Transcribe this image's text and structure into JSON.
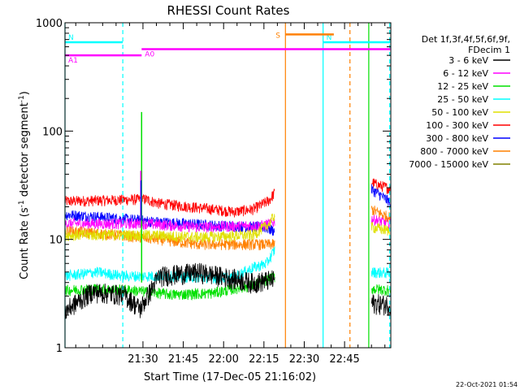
{
  "stamp": "22-Oct-2021 01:54",
  "chart_data": {
    "type": "line",
    "title": "RHESSI Count Rates",
    "xlabel": "Start Time (17-Dec-05 21:16:02)",
    "ylabel_main": "Count Rate (s",
    "ylabel_sup1": "-1",
    "ylabel_mid": " detector segment",
    "ylabel_sup2": "-1",
    "ylabel_end": ")",
    "y_scale": "log",
    "ylim": [
      1,
      1000
    ],
    "xlim_minutes": [
      21.3,
      39.3
    ],
    "x_ticks": [
      {
        "label": "21:30",
        "minutes": 29
      },
      {
        "label": "21:45",
        "minutes": 44
      },
      {
        "label": "22:00",
        "minutes": 59
      },
      {
        "label": "22:15",
        "minutes": 74
      },
      {
        "label": "22:30",
        "minutes": 89
      },
      {
        "label": "22:45",
        "minutes": 104
      }
    ],
    "y_ticks": [
      {
        "label": "1000",
        "value": 1000
      },
      {
        "label": "100",
        "value": 100
      },
      {
        "label": "10",
        "value": 10
      },
      {
        "label": "1",
        "value": 1
      }
    ],
    "legend": {
      "placement": "right",
      "header": [
        "Det 1f,3f,4f,5f,6f,9f,",
        "FDecim 1"
      ],
      "entries": [
        {
          "label": "3 - 6 keV",
          "color": "#000000"
        },
        {
          "label": "6 - 12 keV",
          "color": "#ff00ff"
        },
        {
          "label": "12 - 25 keV",
          "color": "#00e000"
        },
        {
          "label": "25 - 50 keV",
          "color": "#00ffff"
        },
        {
          "label": "50 - 100 keV",
          "color": "#e0e000"
        },
        {
          "label": "100 - 300 keV",
          "color": "#ff0000"
        },
        {
          "label": "300 - 800 keV",
          "color": "#0000ff"
        },
        {
          "label": "800 - 7000 keV",
          "color": "#ff8000"
        },
        {
          "label": "7000 - 15000 keV",
          "color": "#808000"
        }
      ]
    },
    "series": [
      {
        "color": "#ff0000",
        "seg1": [
          [
            0,
            22.5
          ],
          [
            30,
            23.5
          ],
          [
            35,
            21.5
          ],
          [
            55,
            19
          ],
          [
            63,
            18
          ],
          [
            70,
            19
          ],
          [
            74,
            21.5
          ],
          [
            76,
            23
          ],
          [
            77,
            25
          ],
          [
            78,
            27
          ]
        ],
        "seg2": [
          [
            114,
            34
          ],
          [
            116,
            32
          ],
          [
            118,
            31
          ],
          [
            120,
            30
          ],
          [
            121,
            29
          ]
        ]
      },
      {
        "color": "#0000ff",
        "seg1": [
          [
            0,
            17
          ],
          [
            15,
            16
          ],
          [
            35,
            14.5
          ],
          [
            55,
            13.5
          ],
          [
            74,
            13
          ],
          [
            78,
            12
          ]
        ],
        "seg2": [
          [
            114,
            29
          ],
          [
            117,
            26
          ],
          [
            121,
            22
          ]
        ]
      },
      {
        "color": "#ff00ff",
        "seg1": [
          [
            0,
            14
          ],
          [
            30,
            14
          ],
          [
            50,
            13
          ],
          [
            74,
            13.5
          ],
          [
            78,
            14.5
          ]
        ],
        "seg2": [
          [
            114,
            15.5
          ],
          [
            121,
            14
          ]
        ]
      },
      {
        "color": "#ff8000",
        "seg1": [
          [
            0,
            12
          ],
          [
            20,
            11
          ],
          [
            35,
            10
          ],
          [
            50,
            9
          ],
          [
            74,
            9
          ],
          [
            78,
            9
          ]
        ],
        "seg2": [
          [
            114,
            19
          ],
          [
            118,
            17
          ],
          [
            121,
            16
          ]
        ]
      },
      {
        "color": "#e0e000",
        "seg1": [
          [
            0,
            11
          ],
          [
            30,
            11
          ],
          [
            50,
            10.5
          ],
          [
            70,
            11
          ],
          [
            76,
            14
          ],
          [
            78,
            17
          ]
        ],
        "seg2": [
          [
            114,
            13
          ],
          [
            121,
            12
          ]
        ]
      },
      {
        "color": "#00ffff",
        "seg1": [
          [
            0,
            4.6
          ],
          [
            12,
            5
          ],
          [
            22,
            4.6
          ],
          [
            35,
            4.6
          ],
          [
            50,
            4.5
          ],
          [
            62,
            4.4
          ],
          [
            70,
            5.5
          ],
          [
            75,
            6
          ],
          [
            78,
            8
          ]
        ],
        "seg2": [
          [
            114,
            5
          ],
          [
            121,
            4.9
          ]
        ]
      },
      {
        "color": "#00e000",
        "seg1": [
          [
            0,
            3.4
          ],
          [
            12,
            3.5
          ],
          [
            25,
            3.4
          ],
          [
            40,
            3.1
          ],
          [
            55,
            3.2
          ],
          [
            70,
            3.8
          ],
          [
            78,
            4.5
          ]
        ],
        "seg2": [
          [
            114,
            3.5
          ],
          [
            121,
            3.4
          ]
        ]
      },
      {
        "color": "#000000",
        "seg1": [
          [
            0,
            2.2
          ],
          [
            10,
            3.3
          ],
          [
            22,
            3.1
          ],
          [
            28,
            2.3
          ],
          [
            35,
            4.6
          ],
          [
            42,
            4.8
          ],
          [
            50,
            5
          ],
          [
            60,
            4.5
          ],
          [
            70,
            4
          ],
          [
            78,
            4.3
          ]
        ],
        "seg2": [
          [
            114,
            2.6
          ],
          [
            121,
            2.5
          ]
        ]
      }
    ],
    "spikes": [
      {
        "color": "#00e000",
        "minute": 28.5,
        "from": 4,
        "to": 150
      },
      {
        "color": "#ff00ff",
        "minute": 28.2,
        "from": 15,
        "to": 43
      },
      {
        "color": "#0000ff",
        "minute": 28.3,
        "from": 15,
        "to": 35
      }
    ],
    "attenuator_bars": [
      {
        "label": "N",
        "color": "#00ffff",
        "start": 0,
        "end": 21.5,
        "value": 660
      },
      {
        "label": "N",
        "color": "#00ffff",
        "start": 96,
        "end": 121,
        "value": 660
      },
      {
        "label": "A0",
        "color": "#ff00ff",
        "start": 28.5,
        "end": 121,
        "value": 570
      },
      {
        "label": "A1",
        "color": "#ff00ff",
        "start": 0,
        "end": 28.5,
        "value": 500
      },
      {
        "label": "S",
        "color": "#ff8000",
        "start": 82,
        "end": 100,
        "value": 780
      }
    ],
    "vertical_lines": [
      {
        "color": "#00ffff",
        "minute": 0,
        "style": "solid"
      },
      {
        "color": "#00ffff",
        "minute": 21.5,
        "style": "dashed"
      },
      {
        "color": "#ff8000",
        "minute": 82,
        "style": "solid"
      },
      {
        "color": "#00ffff",
        "minute": 96,
        "style": "solid"
      },
      {
        "color": "#ff8000",
        "minute": 106,
        "style": "dashed"
      },
      {
        "color": "#00e000",
        "minute": 113,
        "style": "solid"
      },
      {
        "color": "#00ffff",
        "minute": 120.8,
        "style": "dashed"
      }
    ]
  }
}
